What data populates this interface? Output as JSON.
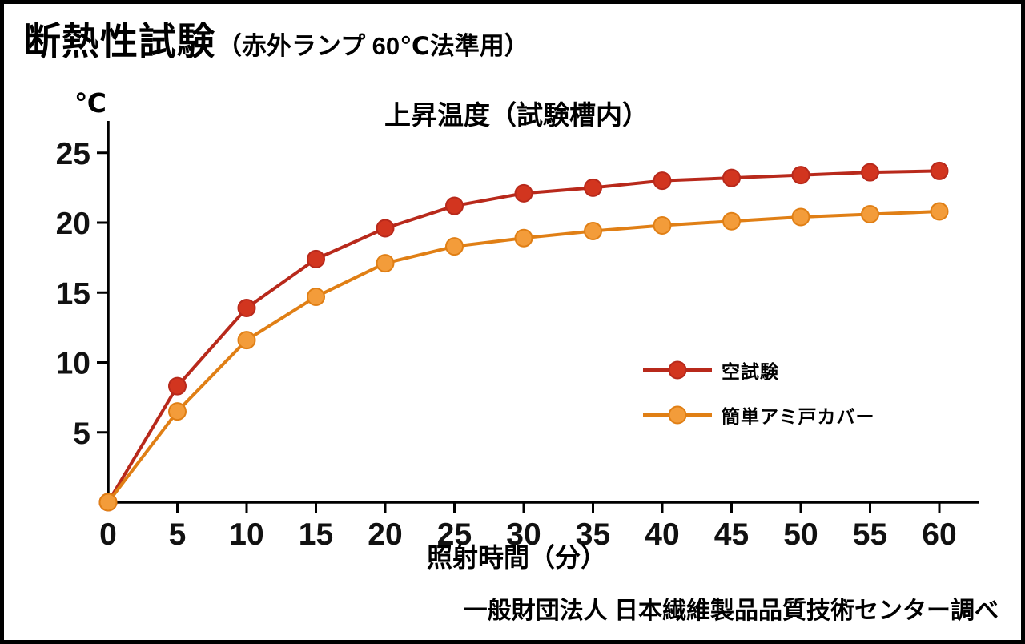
{
  "header": {
    "title": "断熱性試験",
    "subtitle": "（赤外ランプ 60℃法準用）"
  },
  "chart_data": {
    "type": "line",
    "title": "上昇温度（試験槽内）",
    "y_unit_label": "℃",
    "xlabel": "照射時間（分）",
    "ylabel": "",
    "x": [
      0,
      5,
      10,
      15,
      20,
      25,
      30,
      35,
      40,
      45,
      50,
      55,
      60
    ],
    "x_tick_labels": [
      "0",
      "5",
      "10",
      "15",
      "20",
      "25",
      "30",
      "35",
      "40",
      "45",
      "50",
      "55",
      "60"
    ],
    "y_ticks": [
      5,
      10,
      15,
      20,
      25
    ],
    "xlim": [
      0,
      62
    ],
    "ylim": [
      0,
      26.5
    ],
    "grid": false,
    "legend_position": "right-middle",
    "series": [
      {
        "name": "空試験",
        "color": "#b8291b",
        "marker": "#d2351f",
        "values": [
          0,
          8.3,
          13.9,
          17.4,
          19.6,
          21.2,
          22.1,
          22.5,
          23.0,
          23.2,
          23.4,
          23.6,
          23.7
        ]
      },
      {
        "name": "簡単アミ戸カバー",
        "color": "#e07f15",
        "marker": "#f39c3a",
        "values": [
          0,
          6.5,
          11.6,
          14.7,
          17.1,
          18.3,
          18.9,
          19.4,
          19.8,
          20.1,
          20.4,
          20.6,
          20.8
        ]
      }
    ]
  },
  "footer": {
    "source": "一般財団法人 日本繊維製品品質技術センター調べ"
  }
}
